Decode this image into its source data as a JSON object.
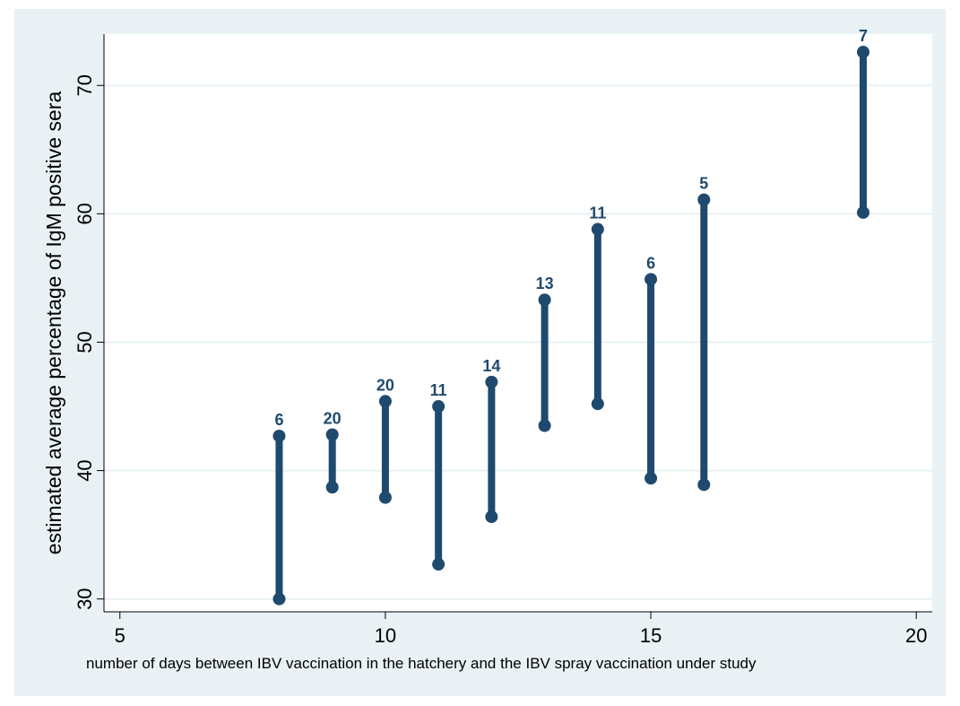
{
  "chart_data": {
    "type": "range",
    "title": "",
    "xlabel": "number of days between IBV vaccination in the hatchery and the IBV spray vaccination under study",
    "ylabel": "estimated average percentage of IgM positive sera",
    "xlim": [
      4.7,
      20.3
    ],
    "ylim": [
      29,
      74
    ],
    "xticks": [
      5,
      10,
      15,
      20
    ],
    "yticks": [
      30,
      40,
      50,
      60,
      70
    ],
    "grid": "horizontal",
    "legend": "none",
    "series_color": "#1f4a6e",
    "ranges": [
      {
        "x": 8,
        "low": 30.0,
        "high": 42.7,
        "label": "6"
      },
      {
        "x": 9,
        "low": 38.7,
        "high": 42.8,
        "label": "20"
      },
      {
        "x": 10,
        "low": 37.9,
        "high": 45.4,
        "label": "20"
      },
      {
        "x": 11,
        "low": 32.7,
        "high": 45.0,
        "label": "11"
      },
      {
        "x": 12,
        "low": 36.4,
        "high": 46.9,
        "label": "14"
      },
      {
        "x": 13,
        "low": 43.5,
        "high": 53.3,
        "label": "13"
      },
      {
        "x": 14,
        "low": 45.2,
        "high": 58.8,
        "label": "11"
      },
      {
        "x": 15,
        "low": 39.4,
        "high": 54.9,
        "label": "6"
      },
      {
        "x": 16,
        "low": 38.9,
        "high": 61.1,
        "label": "5"
      },
      {
        "x": 19,
        "low": 60.1,
        "high": 72.6,
        "label": "7"
      }
    ]
  }
}
